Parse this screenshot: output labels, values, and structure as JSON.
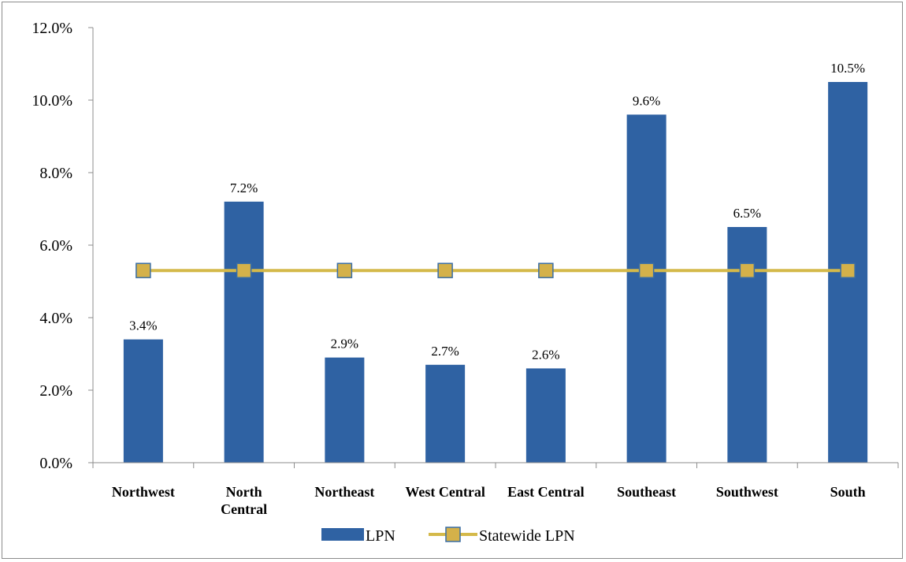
{
  "chart_data": {
    "type": "bar",
    "categories": [
      "Northwest",
      "North Central",
      "Northeast",
      "West Central",
      "East Central",
      "Southeast",
      "Southwest",
      "South"
    ],
    "category_lines": [
      [
        "Northwest"
      ],
      [
        "North",
        "Central"
      ],
      [
        "Northeast"
      ],
      [
        "West Central"
      ],
      [
        "East Central"
      ],
      [
        "Southeast"
      ],
      [
        "Southwest"
      ],
      [
        "South"
      ]
    ],
    "series": [
      {
        "name": "LPN",
        "kind": "bar",
        "values": [
          3.4,
          7.2,
          2.9,
          2.7,
          2.6,
          9.6,
          6.5,
          10.5
        ],
        "labels": [
          "3.4%",
          "7.2%",
          "2.9%",
          "2.7%",
          "2.6%",
          "9.6%",
          "6.5%",
          "10.5%"
        ],
        "color": "#2f62a3"
      },
      {
        "name": "Statewide LPN",
        "kind": "line",
        "values": [
          5.3,
          5.3,
          5.3,
          5.3,
          5.3,
          5.3,
          5.3,
          5.3
        ],
        "color": "#d4b94a",
        "marker_fill": "#d4b14a",
        "marker_stroke": "#3a6ea5"
      }
    ],
    "y_ticks": [
      0,
      2,
      4,
      6,
      8,
      10,
      12
    ],
    "y_tick_labels": [
      "0.0%",
      "2.0%",
      "4.0%",
      "6.0%",
      "8.0%",
      "10.0%",
      "12.0%"
    ],
    "ylim": [
      0,
      12
    ],
    "grid": false,
    "legend": "bottom-center"
  }
}
